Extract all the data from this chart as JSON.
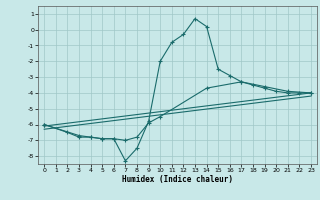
{
  "xlabel": "Humidex (Indice chaleur)",
  "bg_color": "#c8e8e8",
  "line_color": "#1a6b6b",
  "grid_color": "#a0c8c8",
  "xmin": -0.5,
  "xmax": 23.5,
  "ymin": -8.5,
  "ymax": 1.5,
  "xticks": [
    0,
    1,
    2,
    3,
    4,
    5,
    6,
    7,
    8,
    9,
    10,
    11,
    12,
    13,
    14,
    15,
    16,
    17,
    18,
    19,
    20,
    21,
    22,
    23
  ],
  "yticks": [
    1,
    0,
    -1,
    -2,
    -3,
    -4,
    -5,
    -6,
    -7,
    -8
  ],
  "line1_x": [
    0,
    2,
    3,
    4,
    5,
    6,
    7,
    8,
    9,
    10,
    11,
    12,
    13,
    14,
    15,
    16,
    17,
    18,
    19,
    20,
    21,
    22,
    23
  ],
  "line1_y": [
    -6.0,
    -6.5,
    -6.8,
    -6.8,
    -6.9,
    -6.9,
    -8.3,
    -7.5,
    -5.8,
    -2.0,
    -0.8,
    -0.3,
    0.7,
    0.2,
    -2.5,
    -2.9,
    -3.3,
    -3.5,
    -3.7,
    -3.9,
    -4.0,
    -4.0,
    -4.0
  ],
  "line2_x": [
    0,
    3,
    4,
    5,
    6,
    7,
    8,
    9,
    10,
    14,
    17,
    19,
    21,
    23
  ],
  "line2_y": [
    -6.0,
    -6.7,
    -6.8,
    -6.9,
    -6.9,
    -7.0,
    -6.8,
    -5.9,
    -5.5,
    -3.7,
    -3.3,
    -3.6,
    -3.9,
    -4.0
  ],
  "line3_x": [
    0,
    23
  ],
  "line3_y": [
    -6.1,
    -4.0
  ],
  "line4_x": [
    0,
    23
  ],
  "line4_y": [
    -6.3,
    -4.2
  ]
}
